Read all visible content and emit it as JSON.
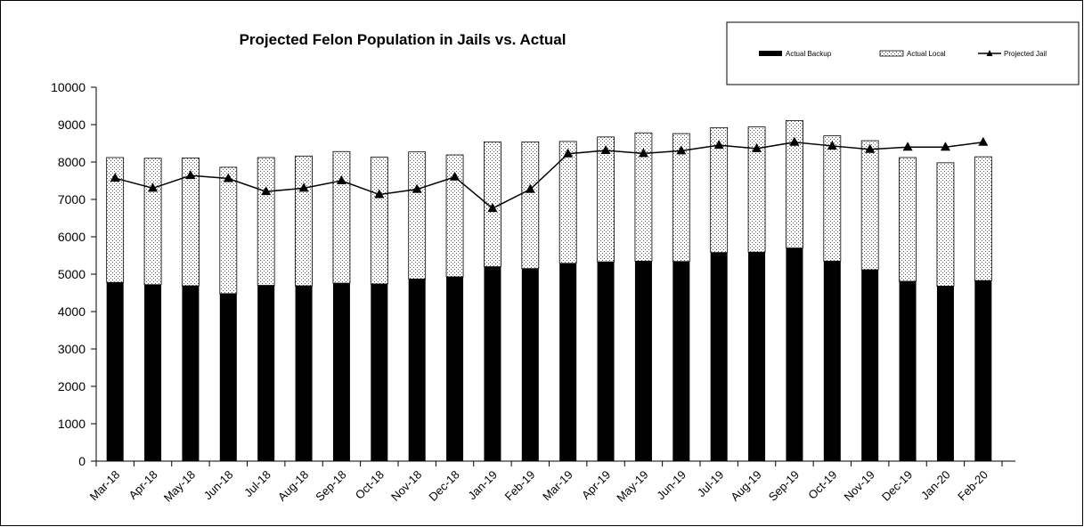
{
  "chart_data": {
    "type": "bar",
    "title": "Projected Felon Population in Jails vs. Actual",
    "xlabel": "",
    "ylabel": "",
    "ylim": [
      0,
      10000
    ],
    "yticks": [
      0,
      1000,
      2000,
      3000,
      4000,
      5000,
      6000,
      7000,
      8000,
      9000,
      10000
    ],
    "legend_position": "top-right",
    "categories": [
      "Mar-18",
      "Apr-18",
      "May-18",
      "Jun-18",
      "Jul-18",
      "Aug-18",
      "Sep-18",
      "Oct-18",
      "Nov-18",
      "Dec-18",
      "Jan-19",
      "Feb-19",
      "Mar-19",
      "Apr-19",
      "May-19",
      "Jun-19",
      "Jul-19",
      "Aug-19",
      "Sep-19",
      "Oct-19",
      "Nov-19",
      "Dec-19",
      "Jan-20",
      "Feb-20"
    ],
    "series": [
      {
        "name": "Actual Backup",
        "type": "bar",
        "stacked": true,
        "color": "#000000",
        "values": [
          4780,
          4720,
          4690,
          4480,
          4700,
          4690,
          4760,
          4740,
          4870,
          4930,
          5200,
          5150,
          5290,
          5330,
          5350,
          5340,
          5580,
          5590,
          5700,
          5350,
          5120,
          4810,
          4680,
          4830
        ]
      },
      {
        "name": "Actual Local",
        "type": "bar",
        "stacked": true,
        "pattern": "dotted",
        "values": [
          3340,
          3380,
          3420,
          3380,
          3420,
          3470,
          3520,
          3390,
          3400,
          3260,
          3340,
          3390,
          3260,
          3340,
          3430,
          3420,
          3340,
          3350,
          3410,
          3350,
          3450,
          3310,
          3300,
          3310
        ]
      },
      {
        "name": "Projected Jail",
        "type": "line",
        "marker": "triangle",
        "color": "#000000",
        "values": [
          7570,
          7300,
          7640,
          7560,
          7210,
          7300,
          7500,
          7130,
          7270,
          7600,
          6760,
          7270,
          8220,
          8310,
          8230,
          8300,
          8450,
          8360,
          8530,
          8430,
          8340,
          8400,
          8400,
          8530
        ]
      }
    ]
  }
}
